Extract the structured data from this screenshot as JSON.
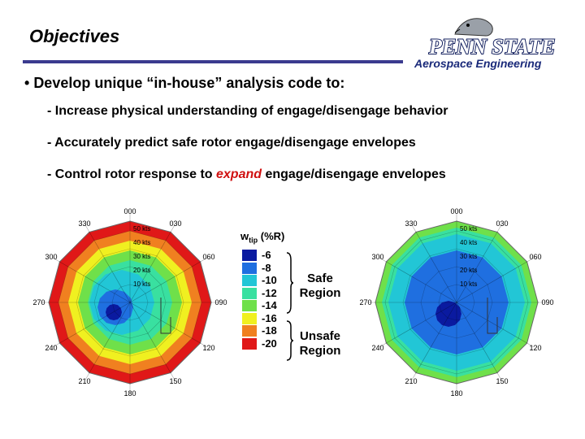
{
  "slide": {
    "title": "Objectives",
    "logo_text": "PENN STATE",
    "dept": "Aerospace Engineering",
    "bullet": "Develop unique “in-house” analysis code to:",
    "items": [
      {
        "text": "- Increase physical understanding of engage/disengage behavior"
      },
      {
        "text": "- Accurately predict safe rotor engage/disengage envelopes"
      },
      {
        "pre": "- Control rotor response to ",
        "emph": "expand",
        "post": " engage/disengage envelopes"
      }
    ]
  },
  "legend": {
    "title_w": "w",
    "title_sub": "tip",
    "title_unit": " (%R)",
    "values": [
      "-6",
      "-8",
      "-10",
      "-12",
      "-14",
      "-16",
      "-18",
      "-20"
    ],
    "colors": [
      "#0a1aa0",
      "#1f6fe0",
      "#22c6d6",
      "#39e0a0",
      "#6fe04a",
      "#f0f020",
      "#f08020",
      "#e01818"
    ],
    "safe_label": "Safe Region",
    "unsafe_label": "Unsafe Region"
  },
  "plots": {
    "azimuths": [
      "000",
      "030",
      "060",
      "090",
      "120",
      "150",
      "180",
      "210",
      "240",
      "270",
      "300",
      "330"
    ],
    "left_speeds": [
      "50 kts",
      "40 kts",
      "30 kts",
      "20 kts",
      "10 kts"
    ],
    "right_speeds": [
      "50 kts",
      "40 kts",
      "30 kts",
      "20 kts",
      "10 kts"
    ]
  }
}
